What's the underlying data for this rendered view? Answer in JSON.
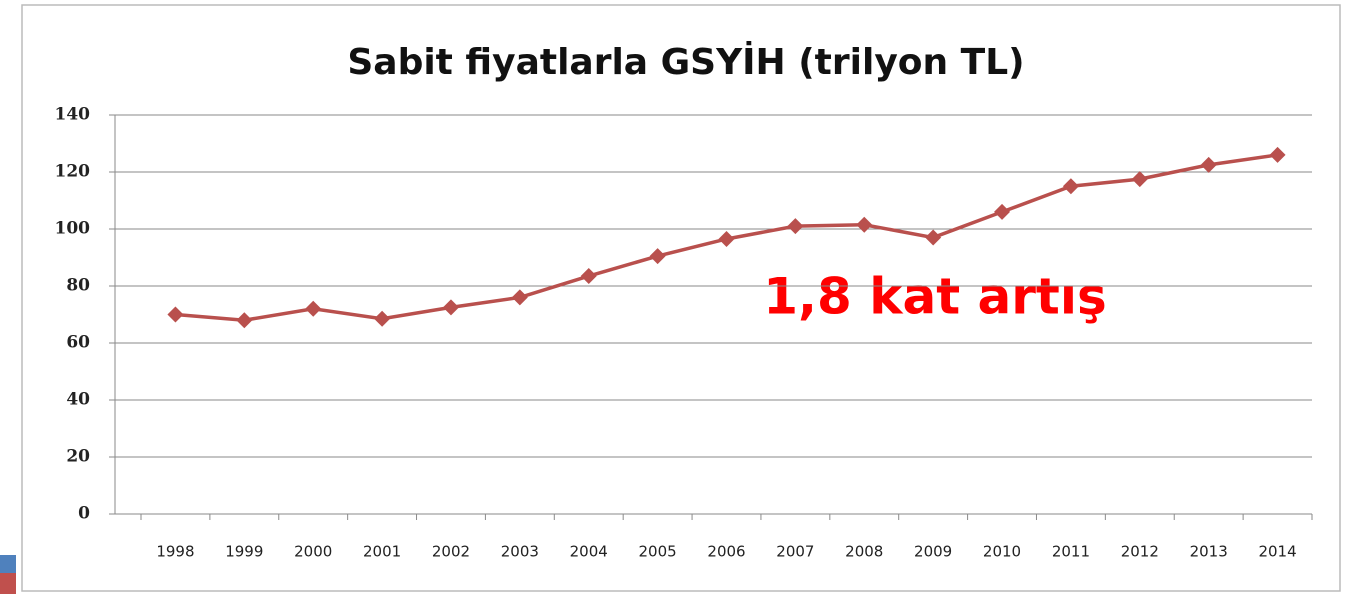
{
  "chart_data": {
    "type": "line",
    "title": "Sabit fiyatlarla GSYİH (trilyon TL)",
    "annotation": "1,8 kat artış",
    "categories": [
      "1998",
      "1999",
      "2000",
      "2001",
      "2002",
      "2003",
      "2004",
      "2005",
      "2006",
      "2007",
      "2008",
      "2009",
      "2010",
      "2011",
      "2012",
      "2013",
      "2014"
    ],
    "series": [
      {
        "name": "GSYİH",
        "color": "#b9504d",
        "values": [
          70,
          68,
          72,
          68.5,
          72.5,
          76,
          83.5,
          90.5,
          96.5,
          101,
          101.5,
          97,
          106,
          115,
          117.5,
          122.5,
          126
        ]
      }
    ],
    "ylim": [
      0,
      140
    ],
    "yticks": [
      0,
      20,
      40,
      60,
      80,
      100,
      120,
      140
    ],
    "grid": true
  }
}
